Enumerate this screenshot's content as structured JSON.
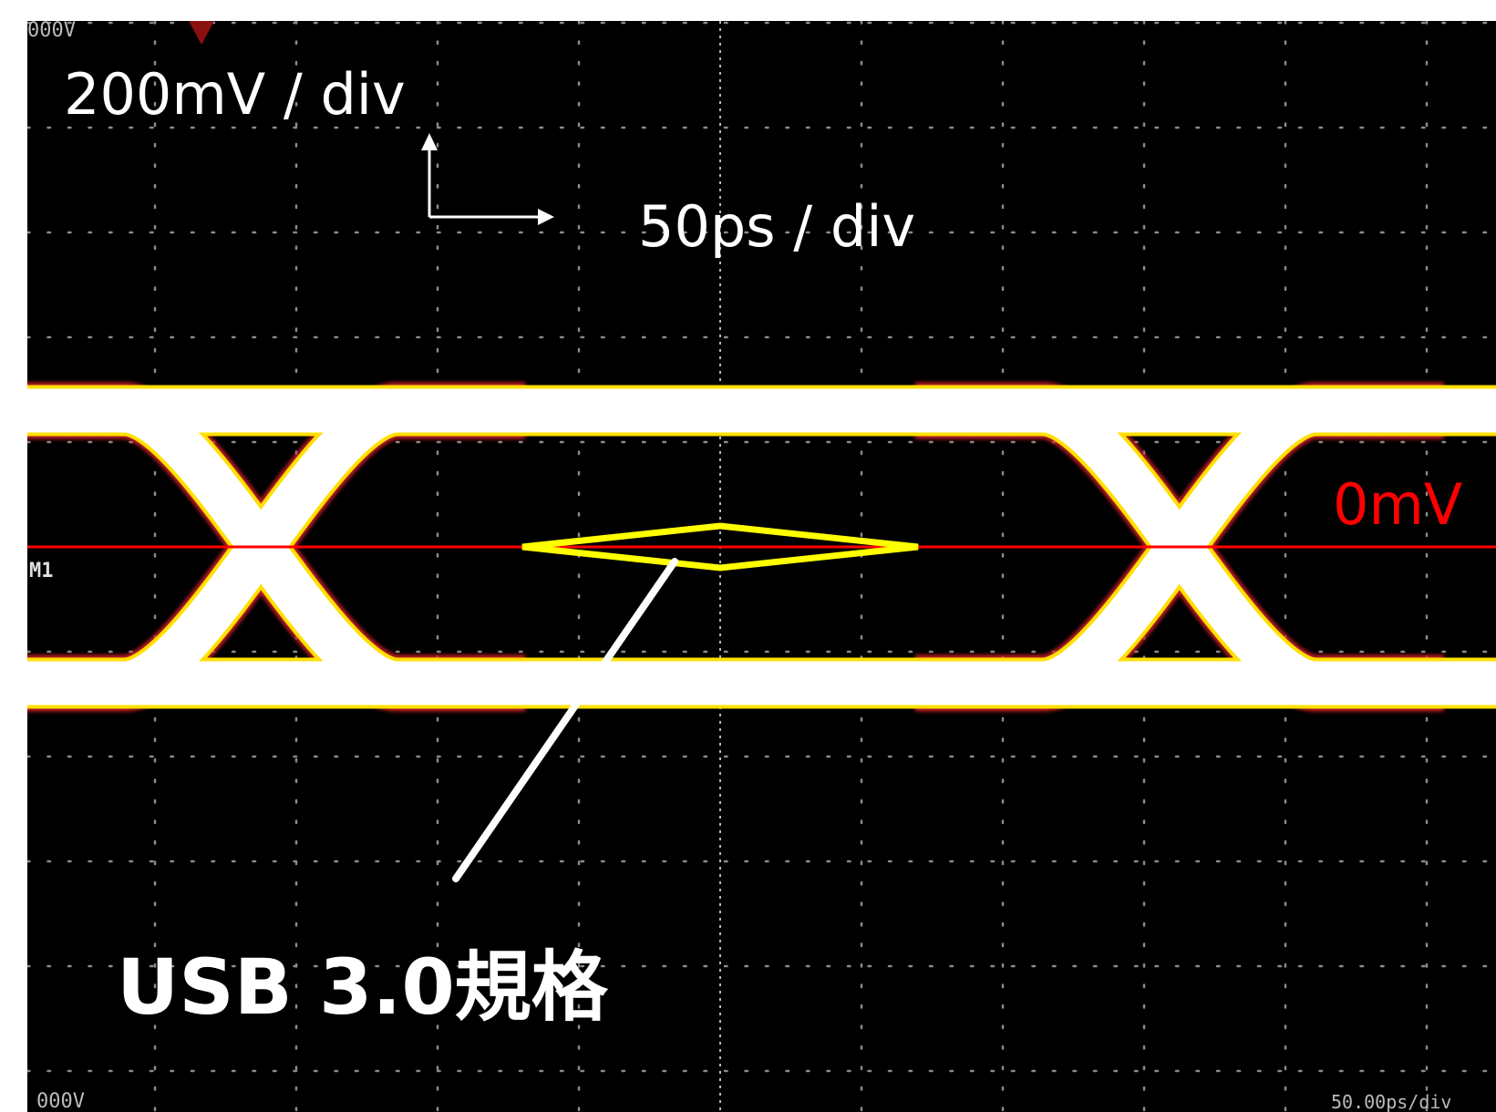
{
  "chart_data": {
    "type": "eye_diagram",
    "vertical_scale": "200mV / div",
    "horizontal_scale": "50ps / div",
    "reference_level_label": "0mV",
    "mask_label": "USB 3.0規格",
    "marker_label": "M1",
    "screen_top_readout": "000V",
    "screen_bottom_readout": "000V",
    "timebase_readout": "50.00ps/div",
    "grid": {
      "horizontal_divisions": 10,
      "vertical_divisions": 10,
      "visible": true
    },
    "signal": {
      "high_level_divs": 1.3,
      "low_level_divs": -1.3,
      "crossing_level_divs": 0,
      "crossing_times_divs": [
        -3.25,
        3.25
      ],
      "trace_color": "#ffffff"
    },
    "mask": {
      "shape": "diamond",
      "time_extent_divs": [
        -1.4,
        1.4
      ],
      "voltage_extent_divs": [
        -0.2,
        0.2
      ],
      "color": "#ffff00"
    },
    "reference_line_color": "#ff0000"
  }
}
